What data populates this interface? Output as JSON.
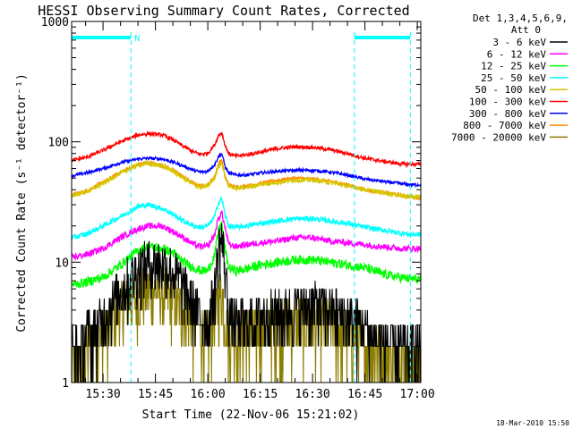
{
  "chart_data": {
    "type": "line",
    "title": "HESSI Observing Summary Count Rates, Corrected",
    "xlabel": "Start Time (22-Nov-06 15:21:02)",
    "ylabel": "Corrected Count Rate (s⁻¹ detector⁻¹)",
    "ylim": [
      1,
      1000
    ],
    "yscale": "log",
    "y_ticks": [
      "1",
      "10",
      "100",
      "1000"
    ],
    "x_ticks": [
      "15:30",
      "15:45",
      "16:00",
      "16:15",
      "16:30",
      "16:45",
      "17:00"
    ],
    "xlim_minutes_after_1500": [
      21.0,
      121.0
    ],
    "legend_header": [
      "Det 1,3,4,5,6,9,",
      "Att 0"
    ],
    "legend_placement": "right",
    "annotations": [
      {
        "text": "N",
        "start": "15:21",
        "end": "15:38"
      },
      {
        "text": "",
        "start": "16:42",
        "end": "16:58"
      }
    ],
    "vertical_markers": [
      "15:38",
      "16:42",
      "16:58"
    ],
    "timestamp": "18-Mar-2010 15:50",
    "x_minutes": [
      21,
      25,
      30,
      35,
      40,
      43,
      47,
      50,
      53,
      56,
      58,
      60,
      62,
      63,
      64,
      65,
      66,
      68,
      71,
      75,
      80,
      85,
      90,
      95,
      100,
      105,
      110,
      115,
      118,
      121
    ],
    "series": [
      {
        "name": "3 - 6 keV",
        "color": "#000000",
        "noise": 0.55,
        "floor": 0,
        "values": [
          1.8,
          2.5,
          3.5,
          5.8,
          9.0,
          10.0,
          9.8,
          8.5,
          6.5,
          4.5,
          3.5,
          3.2,
          6.0,
          13.0,
          16.0,
          9.0,
          4.0,
          3.0,
          3.2,
          3.5,
          3.8,
          4.2,
          4.5,
          4.0,
          3.5,
          2.8,
          2.2,
          2.0,
          2.0,
          2.0
        ]
      },
      {
        "name": "6 - 12 keV",
        "color": "#ff00ff",
        "noise": 0.06,
        "floor": 0,
        "values": [
          11,
          11.5,
          13,
          16,
          19,
          20,
          20,
          18,
          16,
          14,
          13.5,
          13.5,
          17,
          23,
          26,
          19,
          14,
          13.5,
          14,
          14.5,
          15,
          16,
          16,
          15,
          14.5,
          14,
          13.5,
          13,
          13,
          13
        ]
      },
      {
        "name": "12 - 25 keV",
        "color": "#00ff00",
        "noise": 0.09,
        "floor": 0,
        "values": [
          6.5,
          6.8,
          7.5,
          9.5,
          12.5,
          13.5,
          13.0,
          12.0,
          10.0,
          9.0,
          8.5,
          8.5,
          11.5,
          18.0,
          21.0,
          12.5,
          9.0,
          8.5,
          8.8,
          9.5,
          10.0,
          10.5,
          10.5,
          10.0,
          9.5,
          9.0,
          8.0,
          7.5,
          7.3,
          7.2
        ]
      },
      {
        "name": "25 - 50 keV",
        "color": "#00ffff",
        "noise": 0.05,
        "floor": 0,
        "values": [
          16,
          17,
          20,
          24,
          29,
          30,
          28,
          25,
          22,
          20,
          19.5,
          20,
          24,
          31,
          34,
          24,
          20,
          19.5,
          20,
          21,
          22,
          23,
          23,
          22,
          21,
          19.5,
          18.5,
          17.5,
          17,
          17
        ]
      },
      {
        "name": "50 - 100 keV",
        "color": "#d4c800",
        "noise": 0.04,
        "floor": 0,
        "values": [
          36,
          38,
          45,
          55,
          64,
          66,
          63,
          57,
          50,
          44,
          42,
          43,
          50,
          62,
          68,
          50,
          43,
          41,
          42,
          44,
          46,
          48,
          48,
          46,
          43,
          40,
          38,
          36,
          35,
          35
        ]
      },
      {
        "name": "100 - 300 keV",
        "color": "#ff0000",
        "noise": 0.035,
        "floor": 0,
        "values": [
          70,
          74,
          85,
          100,
          114,
          117,
          114,
          104,
          92,
          82,
          79,
          80,
          95,
          112,
          120,
          92,
          80,
          76,
          78,
          82,
          88,
          91,
          90,
          86,
          80,
          73,
          69,
          66,
          65,
          65
        ]
      },
      {
        "name": "300 - 800 keV",
        "color": "#0000ff",
        "noise": 0.03,
        "floor": 0,
        "values": [
          52,
          55,
          60,
          67,
          72,
          73,
          72,
          68,
          63,
          58,
          56,
          57,
          65,
          75,
          80,
          62,
          55,
          53,
          53,
          55,
          57,
          58,
          58,
          56,
          53,
          49,
          47,
          45,
          44,
          44
        ]
      },
      {
        "name": "800 - 7000 keV",
        "color": "#ff8c00",
        "noise": 0.035,
        "floor": 0,
        "values": [
          36,
          39,
          46,
          56,
          65,
          67,
          64,
          58,
          51,
          45,
          43,
          44,
          52,
          65,
          72,
          51,
          44,
          42,
          43,
          45,
          48,
          50,
          49,
          47,
          44,
          40,
          38,
          36,
          35,
          34
        ]
      },
      {
        "name": "7000 - 20000 keV",
        "color": "#8b7d00",
        "noise": 0.6,
        "floor": 1,
        "values": [
          1.3,
          1.8,
          2.6,
          4.0,
          5.5,
          6.0,
          5.8,
          5.0,
          4.0,
          3.0,
          2.6,
          2.5,
          3.5,
          5.2,
          6.0,
          3.5,
          2.6,
          2.4,
          2.5,
          2.8,
          3.0,
          3.2,
          3.3,
          3.0,
          2.7,
          2.3,
          1.9,
          1.6,
          1.5,
          1.5
        ]
      }
    ]
  }
}
